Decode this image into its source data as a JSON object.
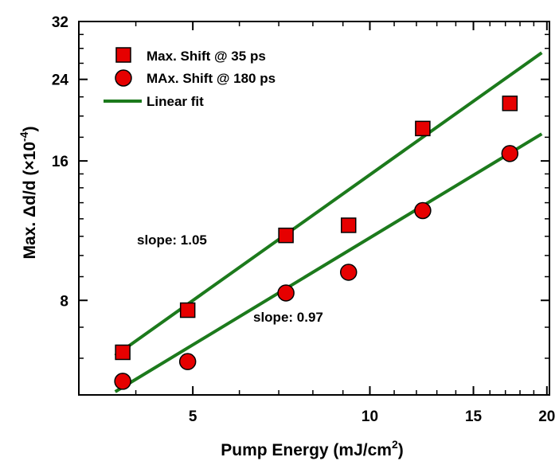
{
  "chart_data": {
    "type": "scatter",
    "xlabel": "Pump Energy (mJ/cm",
    "xlabel_sup": "2",
    "xlabel_suffix": ")",
    "ylabel": "Max. Δd/d (×10",
    "ylabel_sup": "-4",
    "ylabel_suffix": ")",
    "x_scale": "log",
    "y_scale": "log",
    "xlim": [
      3.2,
      20.2
    ],
    "ylim": [
      5.0,
      32.0
    ],
    "x_ticks": [
      {
        "value": 5,
        "label": "5"
      },
      {
        "value": 10,
        "label": "10"
      },
      {
        "value": 15,
        "label": "15"
      },
      {
        "value": 20,
        "label": "20"
      }
    ],
    "x_minor_ticks": [
      4,
      6,
      7,
      8,
      9,
      11,
      12,
      13,
      14,
      16,
      17,
      18,
      19
    ],
    "y_ticks": [
      {
        "value": 8,
        "label": "8"
      },
      {
        "value": 16,
        "label": "16"
      },
      {
        "value": 24,
        "label": "24"
      },
      {
        "value": 32,
        "label": "32"
      }
    ],
    "y_minor_ticks": [
      5,
      6,
      7,
      9,
      10,
      11,
      12,
      13,
      14,
      15,
      18,
      20,
      22,
      26,
      28,
      30
    ],
    "grid": false,
    "legend_position": "top-left",
    "series": [
      {
        "name": "Max. Shift @ 35 ps",
        "marker": "square",
        "color": "#e60000",
        "edge_color": "#000000",
        "x": [
          3.8,
          4.9,
          7.2,
          9.2,
          12.3,
          17.3
        ],
        "y": [
          6.18,
          7.62,
          11.05,
          11.62,
          18.8,
          21.3
        ]
      },
      {
        "name": "MAx. Shift @ 180 ps",
        "marker": "circle",
        "color": "#e60000",
        "edge_color": "#000000",
        "x": [
          3.8,
          4.9,
          7.2,
          9.2,
          12.3,
          17.3
        ],
        "y": [
          5.35,
          5.9,
          8.3,
          9.2,
          12.5,
          16.6
        ]
      },
      {
        "name": "Linear fit",
        "type": "line",
        "color": "#1c7a1c",
        "segments": [
          {
            "x": [
              3.69,
              19.6
            ],
            "y": [
              6.08,
              27.4
            ]
          },
          {
            "x": [
              3.69,
              19.6
            ],
            "y": [
              5.08,
              18.3
            ]
          }
        ]
      }
    ],
    "annotations": [
      {
        "text": "slope: 1.05"
      },
      {
        "text": "slope: 0.97"
      }
    ]
  }
}
